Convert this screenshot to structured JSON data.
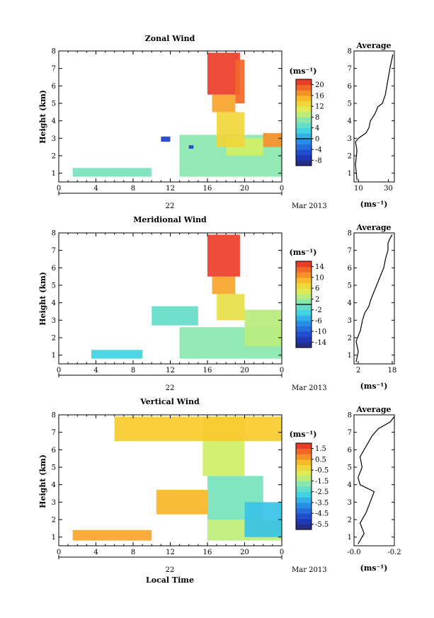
{
  "figure": {
    "xlabel_bottom": "Local Time",
    "date_label": "Mar 2013",
    "day_label": "22",
    "ylabel": "Height (km)",
    "avg_title": "Average",
    "colorbar_unit": "(ms⁻¹)",
    "avg_unit": "(ms⁻¹)"
  },
  "chart_data": [
    {
      "type": "heatmap",
      "title": "Zonal Wind",
      "xlabel": "",
      "ylabel": "Height (km)",
      "xlim": [
        0,
        24
      ],
      "ylim": [
        0.5,
        8
      ],
      "xticks": [
        "0",
        "4",
        "8",
        "12",
        "16",
        "20",
        "0"
      ],
      "yticks": [
        "1",
        "2",
        "3",
        "4",
        "5",
        "6",
        "7",
        "8"
      ],
      "colorbar": {
        "min": -10,
        "max": 22,
        "ticks": [
          "-8",
          "-4",
          "0",
          "4",
          "8",
          "12",
          "16",
          "20"
        ],
        "tick_values": [
          -8,
          -4,
          0,
          4,
          8,
          12,
          16,
          20
        ],
        "contour": 0
      },
      "average": {
        "xlim": [
          7,
          34
        ],
        "xticks": [
          "10",
          "30"
        ],
        "xtick_values": [
          10,
          30
        ],
        "profile": [
          [
            9,
            0.6
          ],
          [
            8,
            1.5
          ],
          [
            9,
            2.3
          ],
          [
            8,
            2.8
          ],
          [
            10,
            3.0
          ],
          [
            15,
            3.3
          ],
          [
            17,
            3.6
          ],
          [
            18,
            4.0
          ],
          [
            21,
            4.4
          ],
          [
            23,
            4.8
          ],
          [
            26,
            5.0
          ],
          [
            28,
            5.5
          ],
          [
            29,
            6.0
          ],
          [
            30,
            6.5
          ],
          [
            31,
            7.0
          ],
          [
            32,
            7.4
          ],
          [
            33,
            7.8
          ]
        ]
      },
      "regions": [
        {
          "t0": 1.5,
          "t1": 10,
          "h0": 0.8,
          "h1": 1.3,
          "v": 6
        },
        {
          "t0": 13,
          "t1": 24,
          "h0": 0.8,
          "h1": 3.2,
          "v": 7
        },
        {
          "t0": 18,
          "t1": 22,
          "h0": 2.0,
          "h1": 3.0,
          "v": 10
        },
        {
          "t0": 17,
          "t1": 20,
          "h0": 2.5,
          "h1": 4.5,
          "v": 13
        },
        {
          "t0": 16.5,
          "t1": 19,
          "h0": 4.5,
          "h1": 5.5,
          "v": 16
        },
        {
          "t0": 16,
          "t1": 19.5,
          "h0": 5.5,
          "h1": 7.9,
          "v": 21
        },
        {
          "t0": 19,
          "t1": 20,
          "h0": 5.0,
          "h1": 7.5,
          "v": 19
        },
        {
          "t0": 22,
          "t1": 24,
          "h0": 2.5,
          "h1": 3.3,
          "v": 17
        },
        {
          "t0": 11,
          "t1": 12,
          "h0": 2.8,
          "h1": 3.1,
          "v": -6
        },
        {
          "t0": 14,
          "t1": 14.5,
          "h0": 2.4,
          "h1": 2.6,
          "v": -6
        }
      ]
    },
    {
      "type": "heatmap",
      "title": "Meridional Wind",
      "xlabel": "",
      "ylabel": "Height (km)",
      "xlim": [
        0,
        24
      ],
      "ylim": [
        0.5,
        8
      ],
      "xticks": [
        "0",
        "4",
        "8",
        "12",
        "16",
        "20",
        "0"
      ],
      "yticks": [
        "1",
        "2",
        "3",
        "4",
        "5",
        "6",
        "7",
        "8"
      ],
      "colorbar": {
        "min": -16,
        "max": 16,
        "ticks": [
          "-14",
          "-10",
          "-6",
          "-2",
          "2",
          "6",
          "10",
          "14"
        ],
        "tick_values": [
          -14,
          -10,
          -6,
          -2,
          2,
          6,
          10,
          14
        ],
        "contour": 0
      },
      "average": {
        "xlim": [
          0,
          19
        ],
        "xticks": [
          "2",
          "18"
        ],
        "xtick_values": [
          2,
          18
        ],
        "profile": [
          [
            1,
            0.6
          ],
          [
            2,
            1.2
          ],
          [
            1,
            1.8
          ],
          [
            3,
            2.4
          ],
          [
            4,
            3.0
          ],
          [
            5,
            3.4
          ],
          [
            7,
            3.8
          ],
          [
            8,
            4.2
          ],
          [
            10,
            4.8
          ],
          [
            12,
            5.4
          ],
          [
            14,
            6.0
          ],
          [
            15,
            6.6
          ],
          [
            16,
            7.0
          ],
          [
            16,
            7.4
          ],
          [
            17,
            7.7
          ],
          [
            18,
            7.9
          ]
        ]
      },
      "regions": [
        {
          "t0": 3.5,
          "t1": 9,
          "h0": 0.8,
          "h1": 1.3,
          "v": -3
        },
        {
          "t0": 13,
          "t1": 24,
          "h0": 0.8,
          "h1": 2.6,
          "v": 1
        },
        {
          "t0": 10,
          "t1": 15,
          "h0": 2.7,
          "h1": 3.8,
          "v": -1
        },
        {
          "t0": 17,
          "t1": 20,
          "h0": 3.0,
          "h1": 4.5,
          "v": 6
        },
        {
          "t0": 16.5,
          "t1": 19,
          "h0": 4.5,
          "h1": 5.5,
          "v": 10
        },
        {
          "t0": 16,
          "t1": 19.5,
          "h0": 5.5,
          "h1": 7.9,
          "v": 15
        },
        {
          "t0": 20,
          "t1": 24,
          "h0": 1.5,
          "h1": 3.6,
          "v": 3
        }
      ]
    },
    {
      "type": "heatmap",
      "title": "Vertical Wind",
      "xlabel": "Local Time",
      "ylabel": "Height (km)",
      "xlim": [
        0,
        24
      ],
      "ylim": [
        0.5,
        8
      ],
      "xticks": [
        "0",
        "4",
        "8",
        "12",
        "16",
        "20",
        "0"
      ],
      "yticks": [
        "1",
        "2",
        "3",
        "4",
        "5",
        "6",
        "7",
        "8"
      ],
      "colorbar": {
        "min": -6,
        "max": 2,
        "ticks": [
          "-5.5",
          "-4.5",
          "-3.5",
          "-2.5",
          "-1.5",
          "-0.5",
          "0.5",
          "1.5"
        ],
        "tick_values": [
          -5.5,
          -4.5,
          -3.5,
          -2.5,
          -1.5,
          -0.5,
          0.5,
          1.5
        ],
        "contour": null
      },
      "average": {
        "xlim": [
          -0.0,
          -0.2
        ],
        "xticks": [
          "-0.0",
          "-0.2"
        ],
        "xtick_values": [
          -0.0,
          -0.2
        ],
        "profile": [
          [
            -0.02,
            0.6
          ],
          [
            -0.05,
            1.2
          ],
          [
            -0.03,
            1.8
          ],
          [
            -0.06,
            2.4
          ],
          [
            -0.08,
            3.0
          ],
          [
            -0.1,
            3.6
          ],
          [
            -0.03,
            4.0
          ],
          [
            -0.02,
            4.4
          ],
          [
            -0.04,
            5.0
          ],
          [
            -0.03,
            5.6
          ],
          [
            -0.06,
            6.2
          ],
          [
            -0.09,
            6.8
          ],
          [
            -0.12,
            7.2
          ],
          [
            -0.18,
            7.6
          ],
          [
            -0.2,
            7.9
          ]
        ]
      },
      "regions": [
        {
          "t0": 1.5,
          "t1": 10,
          "h0": 0.8,
          "h1": 1.4,
          "v": 0.5
        },
        {
          "t0": 10.5,
          "t1": 16,
          "h0": 2.3,
          "h1": 3.7,
          "v": 0.3
        },
        {
          "t0": 16,
          "t1": 24,
          "h0": 0.8,
          "h1": 2.0,
          "v": -1.2
        },
        {
          "t0": 16,
          "t1": 22,
          "h0": 2.0,
          "h1": 4.5,
          "v": -2.0
        },
        {
          "t0": 15.5,
          "t1": 20,
          "h0": 4.5,
          "h1": 7.9,
          "v": -1.0
        },
        {
          "t0": 20,
          "t1": 24,
          "h0": 1.0,
          "h1": 3.0,
          "v": -3.0
        },
        {
          "t0": 6,
          "t1": 24,
          "h0": 6.5,
          "h1": 7.9,
          "v": 0.0
        }
      ]
    }
  ]
}
